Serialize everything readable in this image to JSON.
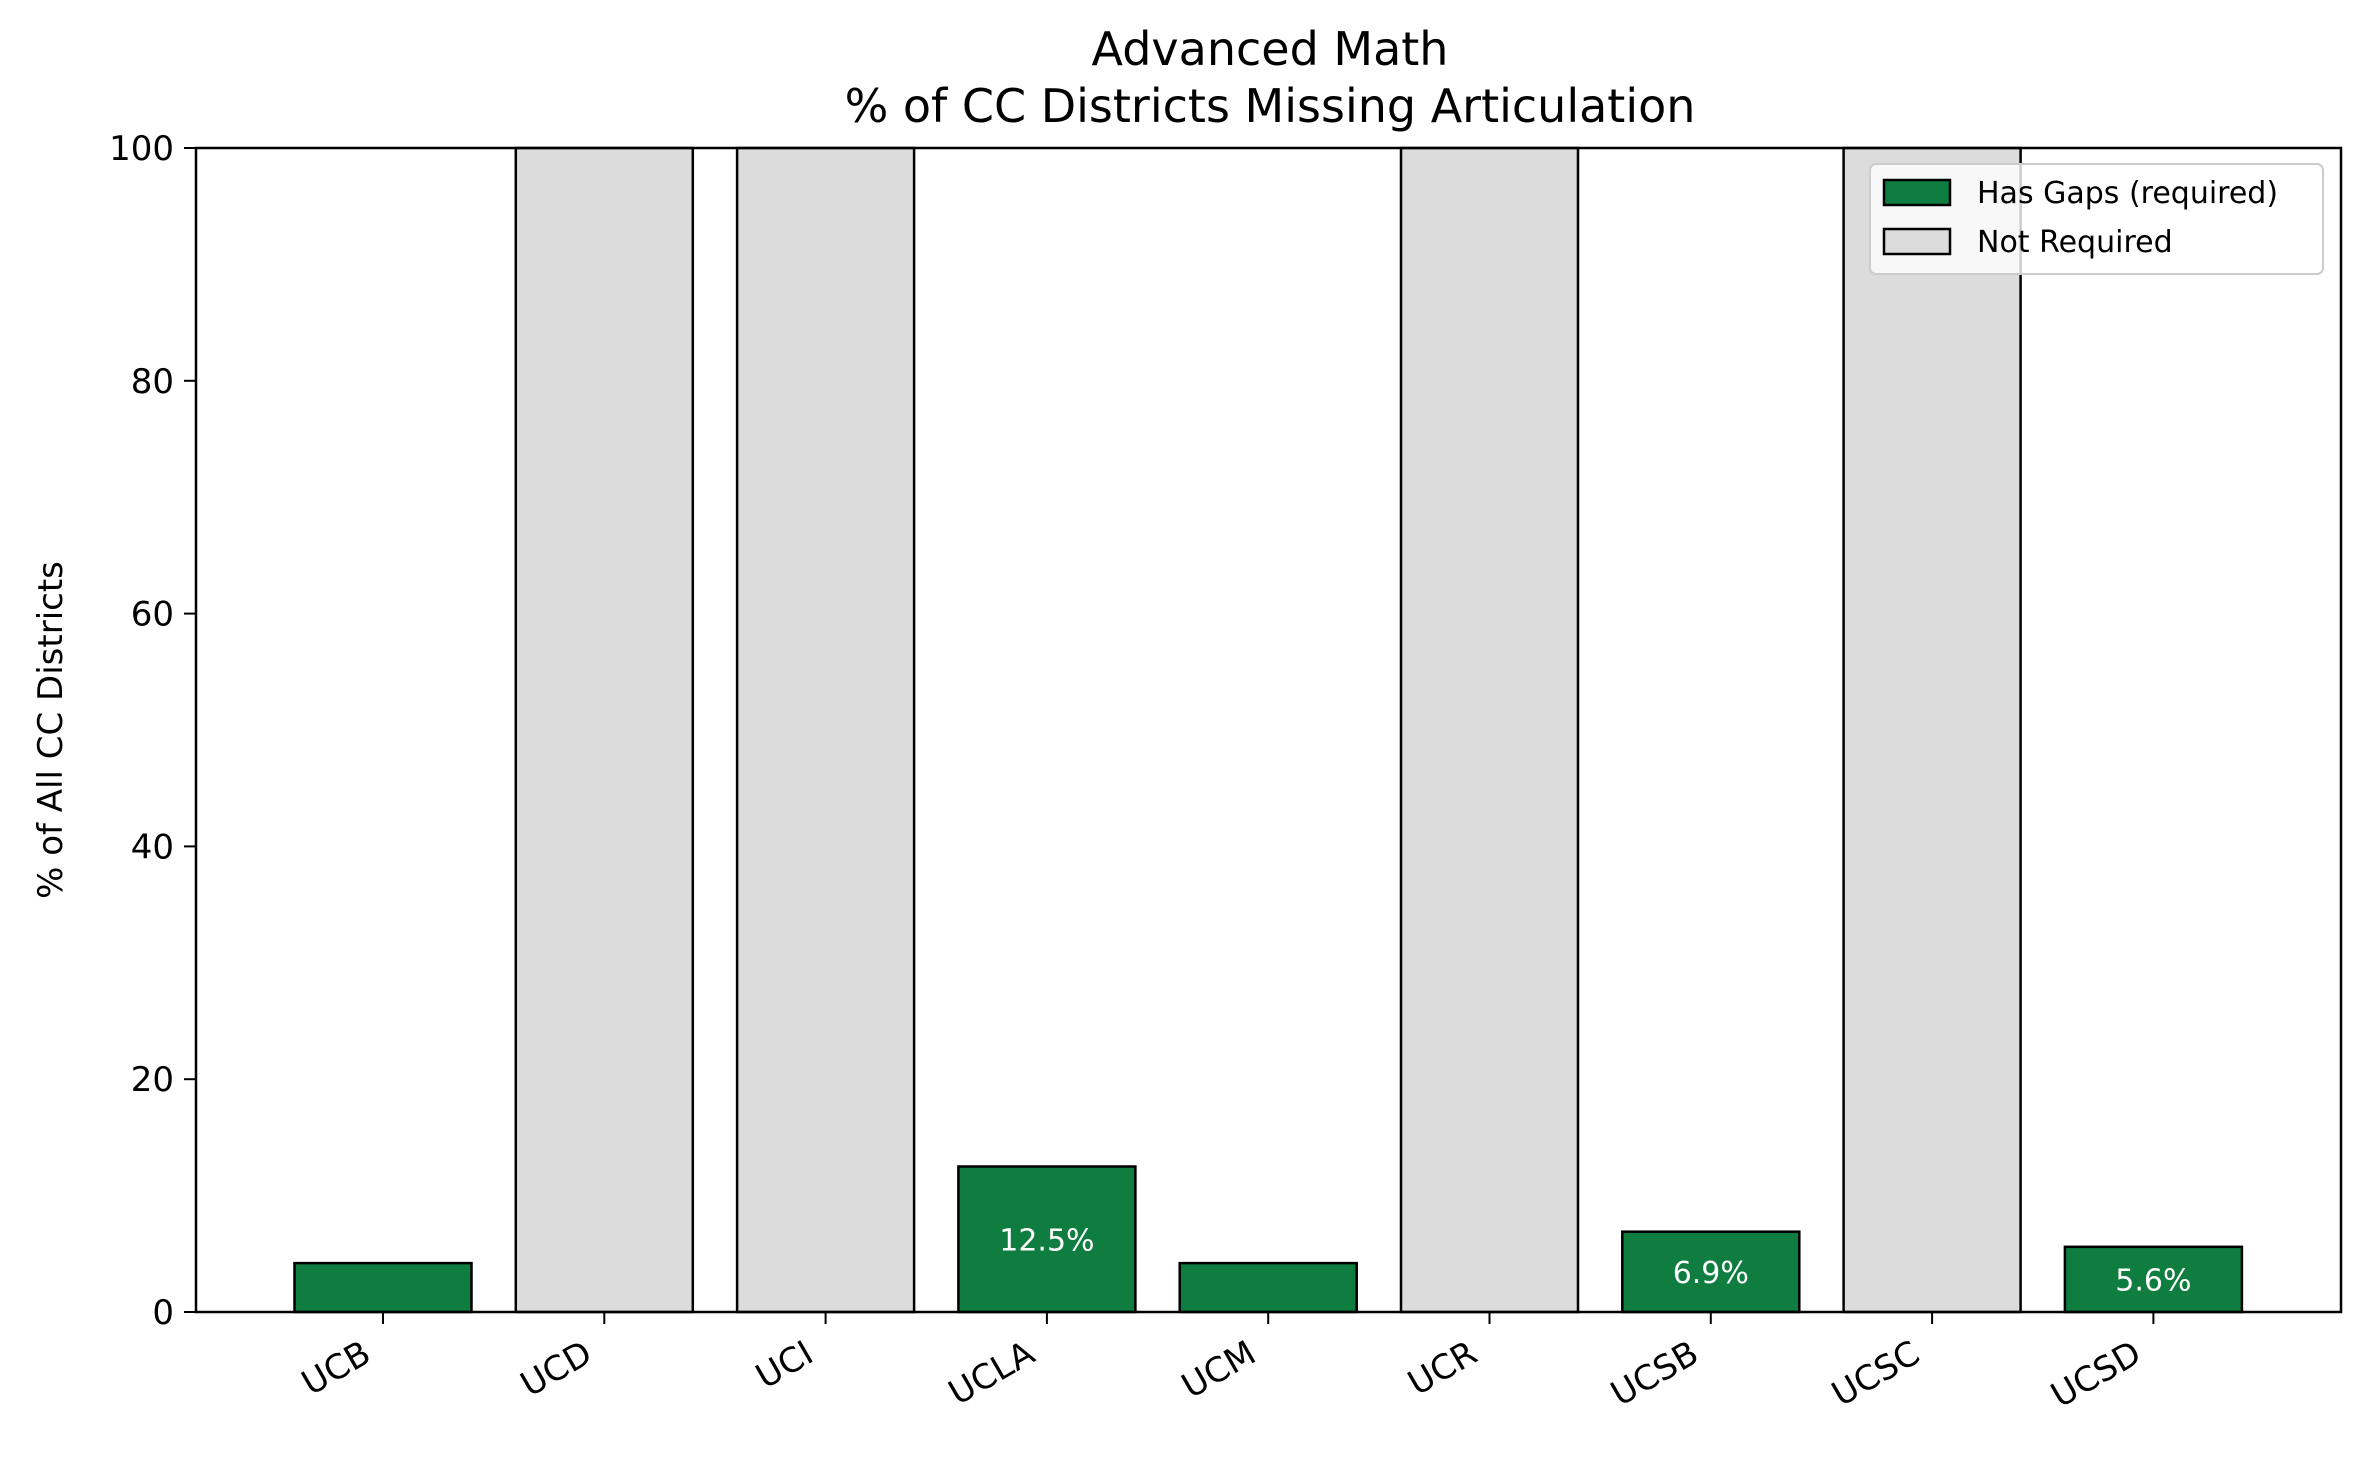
{
  "chart_data": {
    "type": "bar",
    "title": [
      "Advanced Math",
      "% of CC Districts Missing Articulation"
    ],
    "xlabel": "",
    "ylabel": "% of All CC Districts",
    "ylim": [
      0,
      100
    ],
    "yticks": [
      "0",
      "20",
      "40",
      "60",
      "80",
      "100"
    ],
    "categories": [
      "UCB",
      "UCD",
      "UCI",
      "UCLA",
      "UCM",
      "UCR",
      "UCSB",
      "UCSC",
      "UCSD"
    ],
    "bars": [
      {
        "category": "UCB",
        "series": "Has Gaps (required)",
        "value": 4.2,
        "label": ""
      },
      {
        "category": "UCD",
        "series": "Not Required",
        "value": 100,
        "label": ""
      },
      {
        "category": "UCI",
        "series": "Not Required",
        "value": 100,
        "label": ""
      },
      {
        "category": "UCLA",
        "series": "Has Gaps (required)",
        "value": 12.5,
        "label": "12.5%"
      },
      {
        "category": "UCM",
        "series": "Has Gaps (required)",
        "value": 4.2,
        "label": ""
      },
      {
        "category": "UCR",
        "series": "Not Required",
        "value": 100,
        "label": ""
      },
      {
        "category": "UCSB",
        "series": "Has Gaps (required)",
        "value": 6.9,
        "label": "6.9%"
      },
      {
        "category": "UCSC",
        "series": "Not Required",
        "value": 100,
        "label": ""
      },
      {
        "category": "UCSD",
        "series": "Has Gaps (required)",
        "value": 5.6,
        "label": "5.6%"
      }
    ],
    "series": [
      {
        "name": "Has Gaps (required)",
        "color": "#0e7d3f"
      },
      {
        "name": "Not Required",
        "color": "#dcdcdc"
      }
    ],
    "legend": {
      "placement": "top-right"
    },
    "grid": false
  }
}
